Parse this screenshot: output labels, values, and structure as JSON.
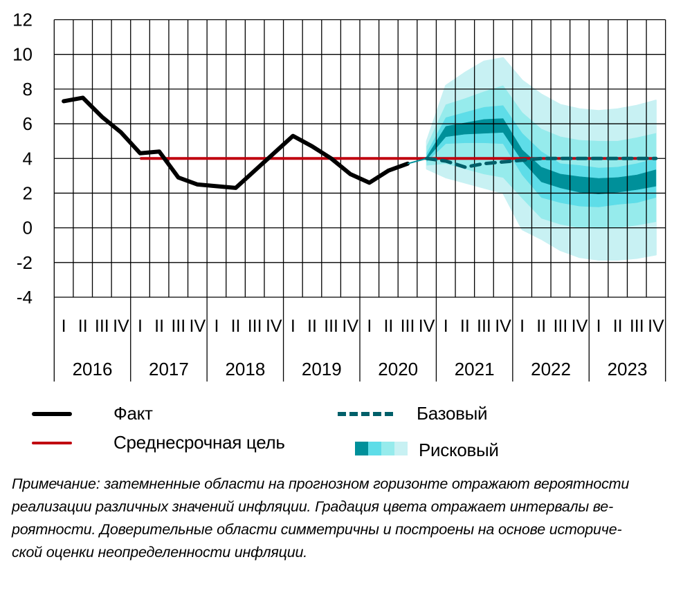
{
  "chart_data": {
    "type": "area",
    "title": "",
    "xlabel": "",
    "ylabel": "",
    "ylim": [
      -4,
      12
    ],
    "yticks": [
      "12",
      "10",
      "8",
      "6",
      "4",
      "2",
      "0",
      "-2",
      "-4"
    ],
    "grid": true,
    "years": [
      "2016",
      "2017",
      "2018",
      "2019",
      "2020",
      "2021",
      "2022",
      "2023"
    ],
    "quarter_labels": [
      "I",
      "II",
      "III",
      "IV"
    ],
    "series": [
      {
        "name": "Факт",
        "type": "line",
        "color": "#000000",
        "start": "2016Q1",
        "values": [
          7.3,
          7.5,
          6.4,
          5.5,
          4.3,
          4.4,
          2.9,
          2.5,
          2.4,
          2.3,
          3.3,
          4.3,
          5.3,
          4.7,
          4.0,
          3.1,
          2.6,
          3.3,
          3.7
        ]
      },
      {
        "name": "Среднесрочная цель",
        "type": "line",
        "color": "#C0000F",
        "start": "2017Q1",
        "end": "2023Q4",
        "value": 4.0
      },
      {
        "name": "Базовый",
        "type": "dashed-line",
        "color": "#005F69",
        "start": "2020Q4",
        "values": [
          4.0,
          3.85,
          3.5,
          3.7,
          3.8,
          3.9,
          4.0,
          4.0,
          4.0,
          4.0,
          4.0,
          4.0,
          4.0
        ]
      },
      {
        "name": "Рисковый",
        "type": "fan",
        "start": "2020Q4",
        "band_colors": [
          "#C8F1F3",
          "#96EBEC",
          "#5EDDE8",
          "#00909A"
        ],
        "bounds_order": [
          "outer_lo",
          "light_lo",
          "mid_lo",
          "dark_lo",
          "dark_hi",
          "mid_hi",
          "light_hi",
          "outer_hi"
        ],
        "bounds": [
          [
            3.4,
            3.6,
            3.8,
            3.95,
            4.1,
            4.3,
            4.7,
            5.0
          ],
          [
            2.9,
            3.7,
            4.85,
            5.25,
            5.85,
            6.35,
            7.1,
            8.2
          ],
          [
            2.6,
            3.4,
            4.9,
            5.4,
            6.05,
            6.65,
            7.45,
            8.95
          ],
          [
            2.3,
            3.1,
            4.9,
            5.45,
            6.25,
            6.95,
            7.85,
            9.6
          ],
          [
            2.0,
            2.9,
            4.85,
            5.5,
            6.3,
            7.05,
            8.2,
            9.8
          ],
          [
            -0.1,
            1.7,
            3.05,
            3.85,
            4.5,
            5.45,
            6.65,
            8.5
          ],
          [
            -0.65,
            0.55,
            1.75,
            2.65,
            3.5,
            4.4,
            5.7,
            7.7
          ],
          [
            -1.3,
            0.2,
            1.45,
            2.3,
            3.1,
            3.7,
            5.25,
            7.1
          ],
          [
            -1.7,
            0.0,
            1.25,
            2.05,
            2.95,
            3.6,
            5.05,
            6.85
          ],
          [
            -1.85,
            -0.05,
            1.2,
            1.95,
            2.85,
            3.45,
            5.0,
            6.75
          ],
          [
            -1.85,
            0.0,
            1.35,
            2.05,
            2.9,
            3.5,
            5.0,
            6.85
          ],
          [
            -1.75,
            0.15,
            1.45,
            2.2,
            3.05,
            3.7,
            5.2,
            7.05
          ],
          [
            -1.55,
            0.35,
            1.75,
            2.4,
            3.35,
            4.0,
            5.45,
            7.35
          ]
        ]
      }
    ],
    "legend": {
      "placement": "bottom",
      "fact": "Факт",
      "target": "Среднесрочная цель",
      "base": "Базовый",
      "risk": "Рисковый"
    }
  },
  "note_lines": [
    "Примечание: затемненные области на прогнозном горизонте отражают вероятности",
    "реализации различных значений инфляции. Градация цвета отражает интервалы ве-",
    "роятности. Доверительные области симметричны и построены на основе историче-",
    "ской оценки неопределенности инфляции."
  ]
}
